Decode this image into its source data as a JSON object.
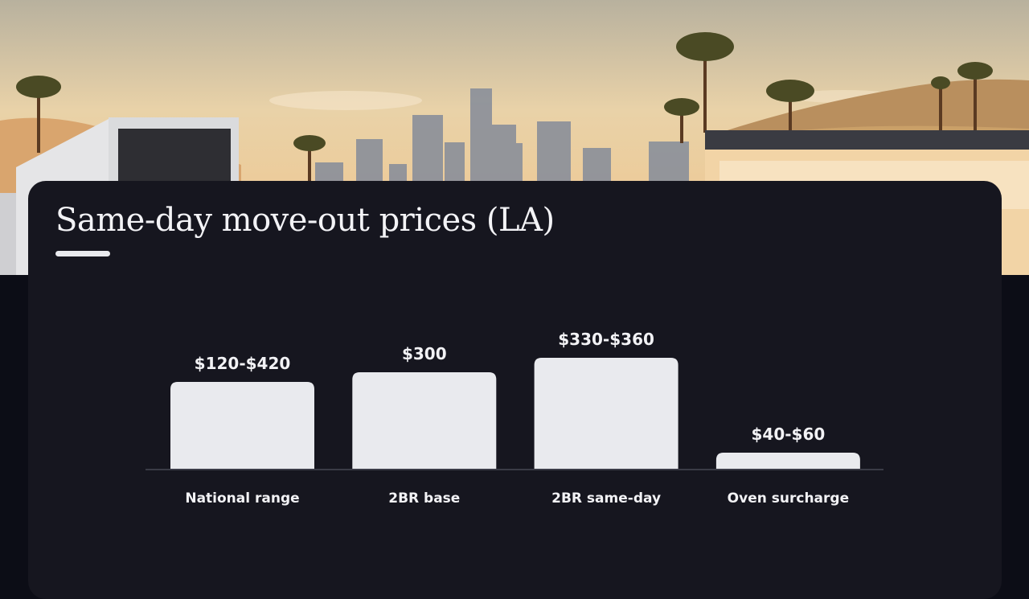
{
  "title": "Same-day move-out prices (LA)",
  "chart_data": {
    "type": "bar",
    "title": "Same-day move-out prices (LA)",
    "categories": [
      "National range",
      "2BR base",
      "2BR same-day",
      "Oven surcharge"
    ],
    "values": [
      270,
      300,
      345,
      50
    ],
    "value_labels": [
      "$120-$420",
      "$300",
      "$330-$360",
      "$40-$60"
    ],
    "xlabel": "",
    "ylabel": "",
    "ylim": [
      0,
      450
    ],
    "grid": false,
    "legend": "none",
    "colors": {
      "bar": "#e9eaee",
      "card": "#16161f",
      "text": "#f2f2f5"
    }
  }
}
